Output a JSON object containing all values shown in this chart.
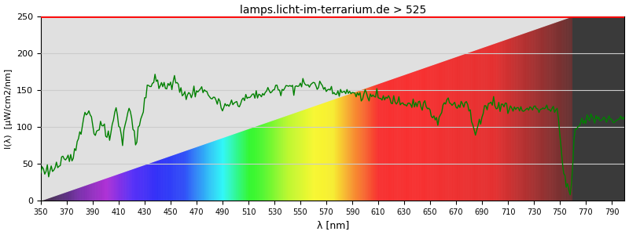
{
  "title": "lamps.licht-im-terrarium.de > 525",
  "xlabel": "λ [nm]",
  "ylabel": "I(λ)  [μW/cm2/nm]",
  "xlim": [
    350,
    800
  ],
  "ylim": [
    0,
    250
  ],
  "yticks": [
    0,
    50,
    100,
    150,
    200,
    250
  ],
  "xticks": [
    350,
    370,
    390,
    410,
    430,
    450,
    470,
    490,
    510,
    530,
    550,
    570,
    590,
    610,
    630,
    650,
    670,
    690,
    710,
    730,
    750,
    770,
    790
  ],
  "background_color": "#e0e0e0",
  "ir_region_color": "#3a3a3a",
  "ir_region_start": 760,
  "title_color": "#000000",
  "title_fontsize": 10,
  "line_color": "#008000",
  "line_width": 1.0,
  "red_top_line_color": "#ff0000",
  "grid_color": "#cccccc"
}
